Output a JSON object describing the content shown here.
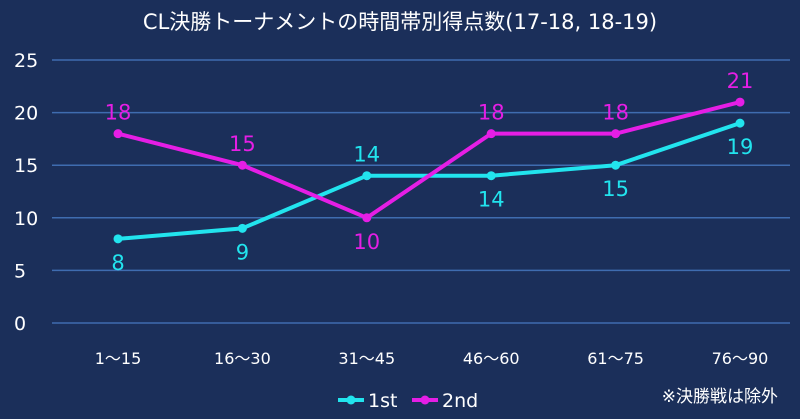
{
  "chart_data": {
    "type": "line",
    "title": "CL決勝トーナメントの時間帯別得点数(17-18, 18-19)",
    "categories": [
      "1～15",
      "16～30",
      "31～45",
      "46～60",
      "61～75",
      "76～90"
    ],
    "series": [
      {
        "name": "1st",
        "values": [
          8,
          9,
          14,
          14,
          15,
          19
        ],
        "color": "#22e4ee",
        "label_pos": [
          "below",
          "below",
          "above",
          "below",
          "below",
          "below"
        ]
      },
      {
        "name": "2nd",
        "values": [
          18,
          15,
          10,
          18,
          18,
          21
        ],
        "color": "#e51ee5",
        "label_pos": [
          "above",
          "above",
          "below",
          "above",
          "above",
          "above"
        ]
      }
    ],
    "ylim": [
      0,
      25
    ],
    "yticks": [
      0,
      5,
      10,
      15,
      20,
      25
    ],
    "grid": true,
    "legend": "bottom-center",
    "background": "#1b2f5a",
    "grid_color": "#3f6cb0",
    "note": "※決勝戦は除外"
  }
}
